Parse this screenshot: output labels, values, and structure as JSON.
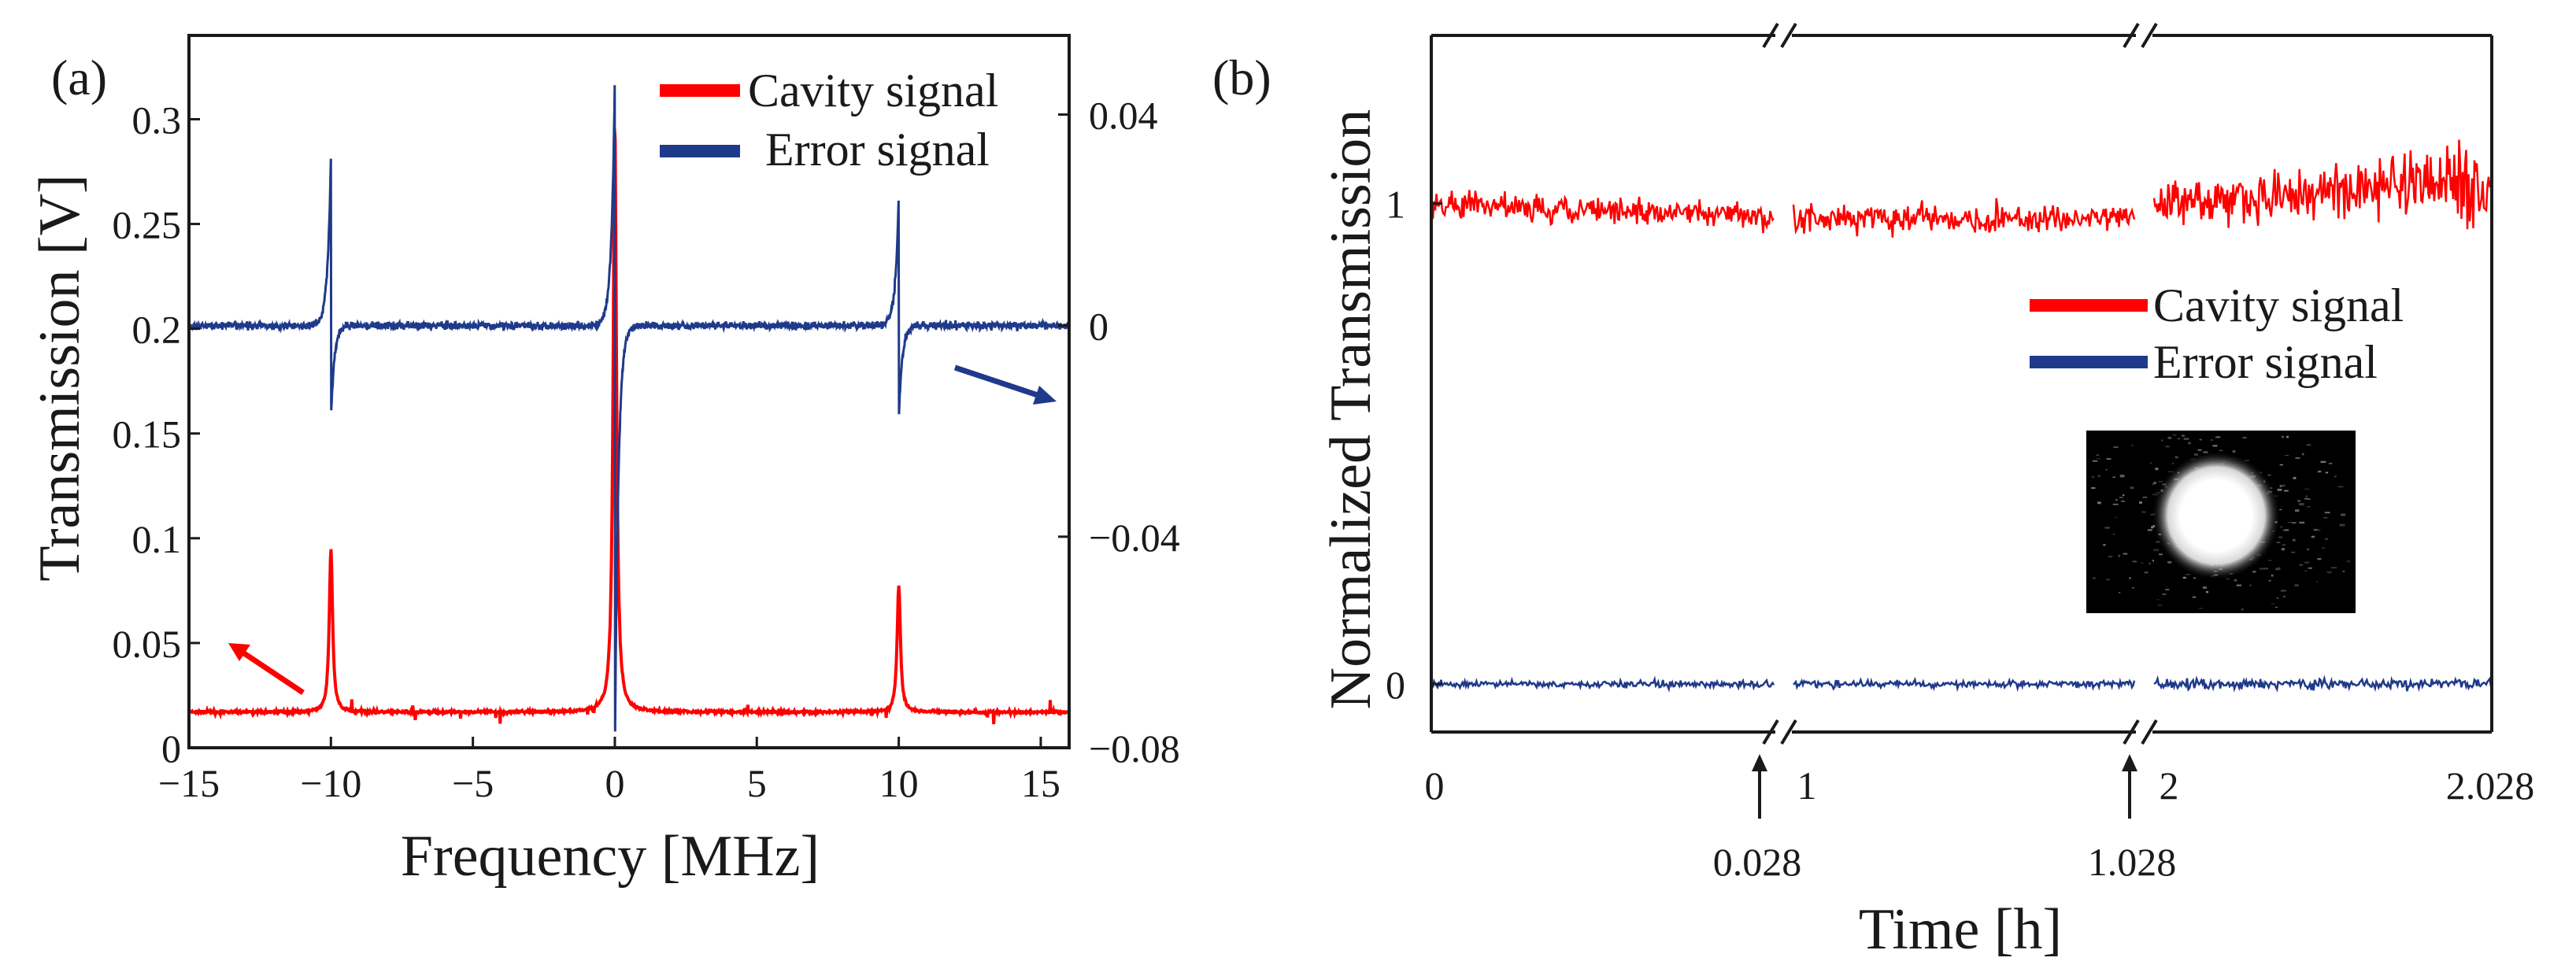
{
  "colors": {
    "cavity": "#ff0000",
    "error": "#1f3a8a",
    "axis": "#1a1a1a"
  },
  "chart_data": [
    {
      "panel_label": "(a)",
      "type": "line",
      "xlabel": "Frequency [MHz]",
      "ylabel": "Transmission [V]",
      "xlim": [
        -15,
        16
      ],
      "ylim": [
        0,
        0.34
      ],
      "ylim_right": [
        -0.08,
        0.055
      ],
      "x_ticks": [
        -15,
        -10,
        -5,
        0,
        5,
        10,
        15
      ],
      "x_tick_labels": [
        "−15",
        "−10",
        "−5",
        "0",
        "5",
        "10",
        "15"
      ],
      "y_ticks": [
        0,
        0.05,
        0.1,
        0.15,
        0.2,
        0.25,
        0.3
      ],
      "y_tick_labels": [
        "0",
        "0.05",
        "0.1",
        "0.15",
        "0.2",
        "0.25",
        "0.3"
      ],
      "y_right_ticks": [
        -0.08,
        -0.04,
        0,
        0.04
      ],
      "y_right_tick_labels": [
        "−0.08",
        "−0.04",
        "0",
        "0.04"
      ],
      "legend": [
        "Cavity signal",
        "Error signal"
      ],
      "series": [
        {
          "name": "Cavity signal",
          "axis": "left",
          "baseline": 0.017,
          "peaks": [
            {
              "x": -10,
              "y": 0.095
            },
            {
              "x": 0,
              "y": 0.3
            },
            {
              "x": 10,
              "y": 0.078
            }
          ]
        },
        {
          "name": "Error signal",
          "axis": "right",
          "baseline": 0,
          "resonances": [
            {
              "x": -10,
              "max": 0.032,
              "min": -0.018
            },
            {
              "x": 0,
              "max": 0.047,
              "min": -0.083
            },
            {
              "x": 10,
              "max": 0.025,
              "min": -0.018
            }
          ]
        }
      ],
      "annotations": [
        {
          "type": "arrow",
          "points_to": "left axis",
          "series": "Cavity signal"
        },
        {
          "type": "arrow",
          "points_to": "right axis",
          "series": "Error signal"
        }
      ]
    },
    {
      "panel_label": "(b)",
      "type": "line",
      "xlabel": "Time [h]",
      "ylabel": "Normalized Transmission",
      "ylim": [
        -0.1,
        1.35
      ],
      "y_ticks": [
        0,
        1
      ],
      "y_tick_labels": [
        "0",
        "1"
      ],
      "x_tick_labels": [
        "0",
        "1",
        "2",
        "2.028"
      ],
      "break_labels": [
        "0.028",
        "1.028"
      ],
      "legend": [
        "Cavity signal",
        "Error signal"
      ],
      "series": [
        {
          "name": "Cavity signal",
          "segments": [
            {
              "start": 1.0,
              "end": 0.97,
              "noise": 0.03
            },
            {
              "start": 0.97,
              "end": 0.97,
              "noise": 0.03
            },
            {
              "start": 1.0,
              "end": 1.05,
              "noise": 0.07
            }
          ]
        },
        {
          "name": "Error signal",
          "segments": [
            {
              "level": 0.0,
              "noise": 0.008
            },
            {
              "level": 0.0,
              "noise": 0.008
            },
            {
              "level": 0.0,
              "noise": 0.012
            }
          ]
        }
      ],
      "inset": "beam-spot-image"
    }
  ]
}
